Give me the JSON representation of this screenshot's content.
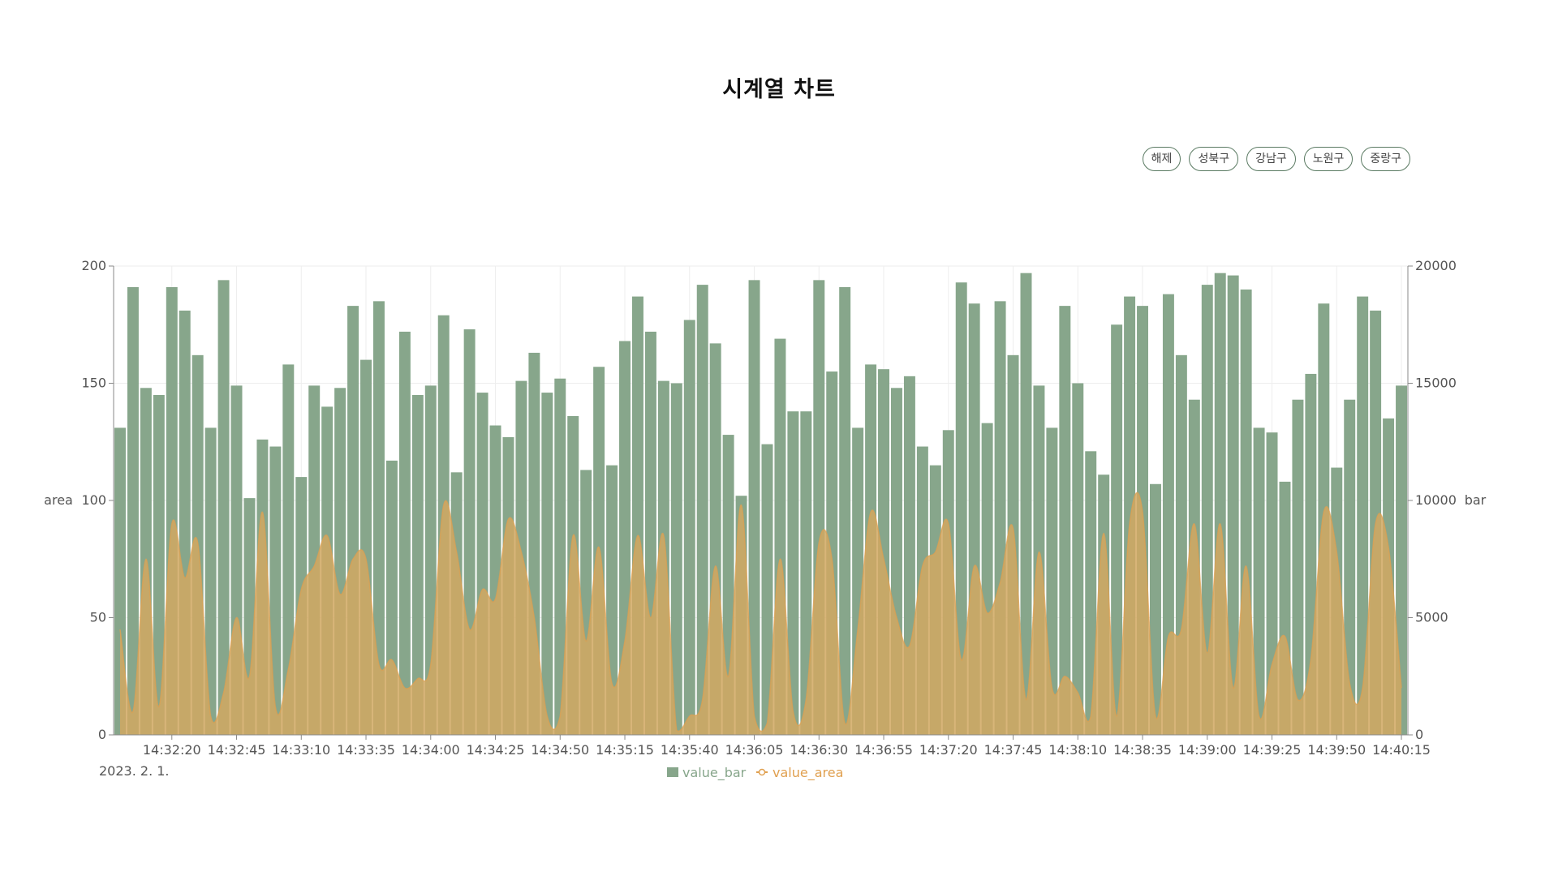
{
  "title": "시계열 차트",
  "filters": [
    {
      "label": "해제"
    },
    {
      "label": "성북구"
    },
    {
      "label": "강남구"
    },
    {
      "label": "노원구"
    },
    {
      "label": "중랑구"
    }
  ],
  "colors": {
    "bar": "#87a68b",
    "area_fill": "#d1a862",
    "area_line": "#e0a050",
    "axis": "#888888",
    "grid": "#eeeeee",
    "text": "#555555"
  },
  "chart_data": {
    "type": "bar",
    "x_tick_labels": [
      "14:32:20",
      "14:32:45",
      "14:33:10",
      "14:33:35",
      "14:34:00",
      "14:34:25",
      "14:34:50",
      "14:35:15",
      "14:35:40",
      "14:36:05",
      "14:36:30",
      "14:36:55",
      "14:37:20",
      "14:37:45",
      "14:38:10",
      "14:38:35",
      "14:39:00",
      "14:39:25",
      "14:39:50",
      "14:40:15"
    ],
    "date_label": "2023. 2. 1.",
    "y_left": {
      "label": "area",
      "min": 0,
      "max": 200,
      "ticks": [
        0,
        50,
        100,
        150,
        200
      ]
    },
    "y_right": {
      "label": "bar",
      "min": 0,
      "max": 20000,
      "ticks": [
        0,
        5000,
        10000,
        15000,
        20000
      ]
    },
    "legend": [
      {
        "name": "value_bar",
        "symbol": "square"
      },
      {
        "name": "value_area",
        "symbol": "line-circle"
      }
    ],
    "series": [
      {
        "name": "value_bar",
        "axis": "bar",
        "values": [
          13100,
          19100,
          14800,
          14500,
          19100,
          18100,
          16200,
          13100,
          19400,
          14900,
          10100,
          12600,
          12300,
          15800,
          11000,
          14900,
          14000,
          14800,
          18300,
          16000,
          18500,
          11700,
          17200,
          14500,
          14900,
          17900,
          11200,
          17300,
          14600,
          13200,
          12700,
          15100,
          16300,
          14600,
          15200,
          13600,
          11300,
          15700,
          11500,
          16800,
          18700,
          17200,
          15100,
          15000,
          17700,
          19200,
          16700,
          12800,
          10200,
          19400,
          12400,
          16900,
          13800,
          13800,
          19400,
          15500,
          19100,
          13100,
          15800,
          15600,
          14800,
          15300,
          12300,
          11500,
          13000,
          19300,
          18400,
          13300,
          18500,
          16200,
          19700,
          14900,
          13100,
          18300,
          15000,
          12100,
          11100,
          17500,
          18700,
          18300,
          10700,
          18800,
          16200,
          14300,
          19200,
          19700,
          19600,
          19000,
          13100,
          12900,
          10800,
          14300,
          15400,
          18400,
          11400,
          14300,
          18700,
          18100,
          13500,
          14900
        ]
      },
      {
        "name": "value_area",
        "axis": "area",
        "values": [
          45,
          10,
          75,
          12,
          90,
          67,
          82,
          8,
          18,
          50,
          25,
          95,
          12,
          28,
          62,
          72,
          85,
          60,
          75,
          75,
          30,
          32,
          20,
          24,
          30,
          98,
          78,
          45,
          62,
          58,
          92,
          78,
          50,
          8,
          8,
          85,
          40,
          80,
          22,
          40,
          85,
          50,
          85,
          2,
          8,
          15,
          72,
          25,
          98,
          8,
          5,
          75,
          10,
          15,
          82,
          75,
          5,
          45,
          95,
          75,
          50,
          38,
          72,
          78,
          90,
          32,
          72,
          52,
          65,
          88,
          15,
          78,
          20,
          25,
          18,
          8,
          86,
          8,
          90,
          95,
          8,
          42,
          45,
          90,
          35,
          90,
          20,
          72,
          8,
          30,
          42,
          15,
          32,
          95,
          78,
          22,
          20,
          90,
          80,
          20
        ]
      }
    ]
  }
}
